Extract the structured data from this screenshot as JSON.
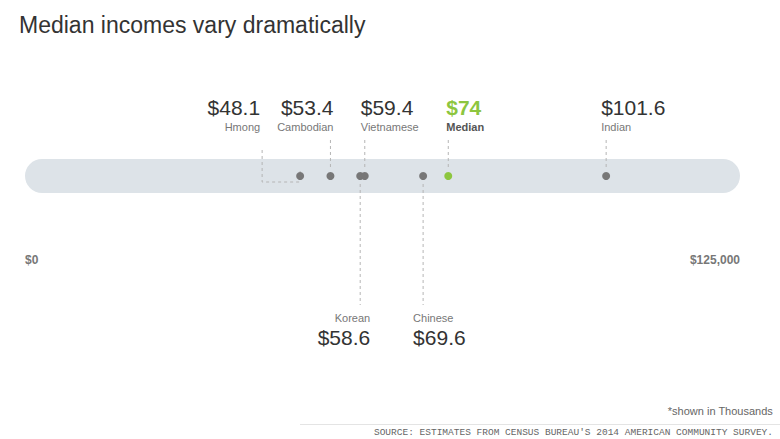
{
  "chart_data": {
    "type": "scatter",
    "title": "Median incomes vary dramatically",
    "categories": [
      "Hmong",
      "Cambodian",
      "Korean",
      "Vietnamese",
      "Chinese",
      "Median",
      "Indian"
    ],
    "values": [
      48100,
      53400,
      58600,
      59400,
      69600,
      74000,
      101600
    ],
    "value_labels": [
      "$48.1",
      "$53.4",
      "$58.6",
      "$59.4",
      "$69.6",
      "$74",
      "$101.6"
    ],
    "colors": [
      "#777777",
      "#777777",
      "#777777",
      "#777777",
      "#777777",
      "#8dc63f",
      "#777777"
    ],
    "xlim": [
      0,
      125000
    ],
    "xticks": [
      {
        "value": 0,
        "label": "$0"
      },
      {
        "value": 125000,
        "label": "$125,000"
      }
    ],
    "data_labels": true,
    "tick_labels": "x",
    "grid": false,
    "note": "*shown in Thousands",
    "source": "SOURCE: ESTIMATES FROM CENSUS BUREAU'S 2014 AMERICAN COMMUNITY SURVEY."
  }
}
